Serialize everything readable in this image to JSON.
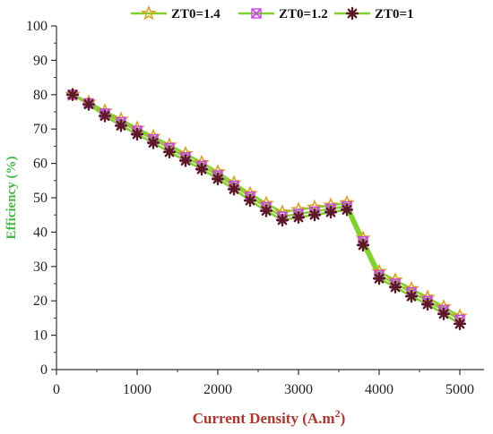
{
  "chart_data": {
    "type": "line",
    "title": "",
    "xlabel": "Current Density (A.m",
    "xlabel_sup": "2",
    "xlabel_close": ")",
    "ylabel": "Efficiency (%)",
    "xlim": [
      0,
      5300
    ],
    "ylim": [
      0,
      100
    ],
    "xticks": [
      0,
      1000,
      2000,
      3000,
      4000,
      5000
    ],
    "yticks": [
      0,
      10,
      20,
      30,
      40,
      50,
      60,
      70,
      80,
      90,
      100
    ],
    "grid": false,
    "legend": "top",
    "x": [
      200,
      400,
      600,
      800,
      1000,
      1200,
      1400,
      1600,
      1800,
      2000,
      2200,
      2400,
      2600,
      2800,
      3000,
      3200,
      3400,
      3600,
      3800,
      4000,
      4200,
      4400,
      4600,
      4800,
      5000
    ],
    "series": [
      {
        "name": "ZT0=1.4",
        "marker": "star",
        "marker_color": "#e0a020",
        "line_color": "#7fd32a",
        "values": [
          80,
          77.8,
          75.2,
          72.8,
          70.2,
          67.8,
          65.3,
          62.8,
          60.2,
          57.5,
          54.3,
          51.2,
          48.3,
          45.8,
          46.5,
          47.2,
          47.8,
          48.5,
          38.2,
          28.5,
          26.0,
          23.5,
          21.0,
          18.2,
          15.5
        ]
      },
      {
        "name": "ZT0=1.2",
        "marker": "x-square",
        "marker_color": "#cc44ee",
        "line_color": "#7fd32a",
        "values": [
          80,
          77.5,
          74.5,
          72.0,
          69.5,
          67.0,
          64.5,
          61.8,
          59.3,
          56.5,
          53.5,
          50.3,
          47.3,
          44.5,
          45.3,
          46.0,
          46.8,
          47.5,
          37.3,
          27.5,
          25.0,
          22.5,
          20.0,
          17.3,
          14.5
        ]
      },
      {
        "name": "ZT0=1",
        "marker": "asterisk",
        "marker_color": "#5a1a26",
        "line_color": "#7fd32a",
        "values": [
          80,
          77.2,
          73.8,
          71.0,
          68.5,
          66.0,
          63.3,
          60.8,
          58.3,
          55.5,
          52.5,
          49.2,
          46.2,
          43.5,
          44.3,
          45.0,
          45.8,
          46.5,
          36.2,
          26.5,
          24.0,
          21.3,
          19.0,
          16.2,
          13.3
        ]
      }
    ]
  }
}
